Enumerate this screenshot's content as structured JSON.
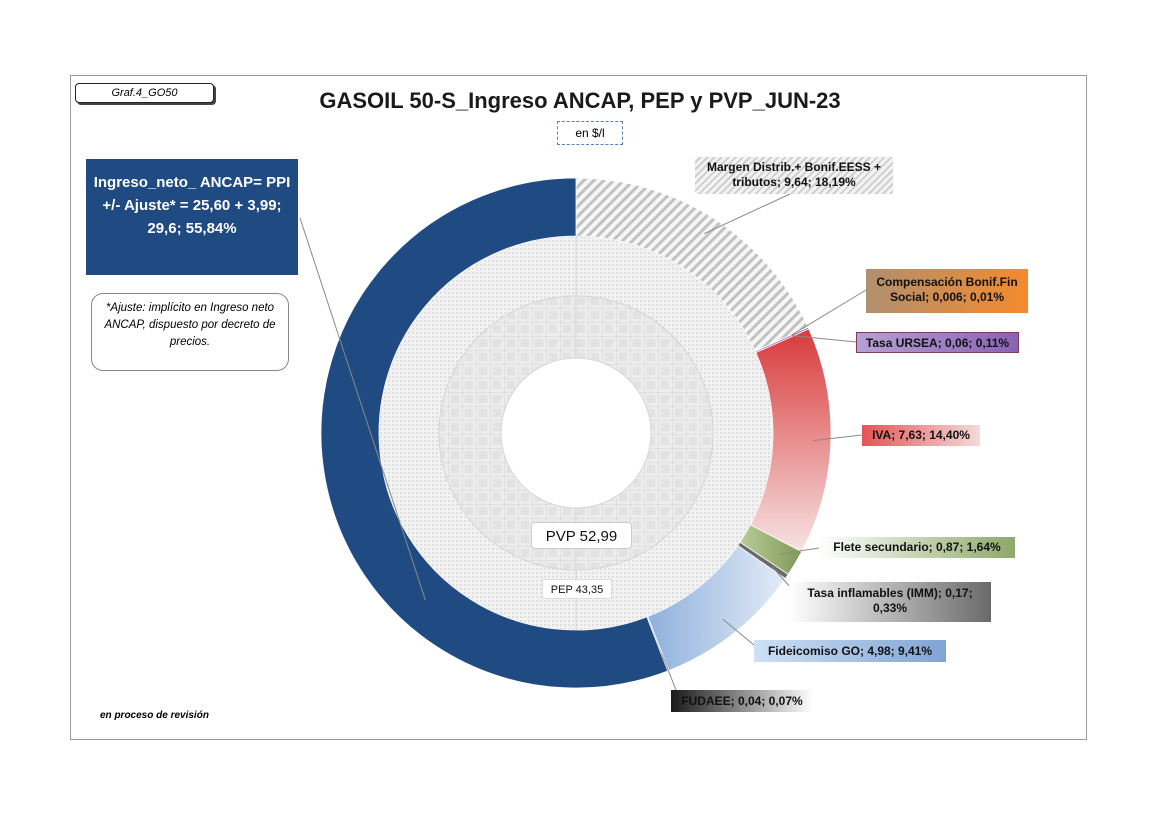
{
  "tag": "Graf.4_GO50",
  "title": "GASOIL 50-S_Ingreso ANCAP, PEP y PVP_JUN-23",
  "unit": "en $/l",
  "note": "en proceso de revisión",
  "ajuste_note": "*Ajuste: implícito en Ingreso neto ANCAP, dispuesto por decreto de precios.",
  "labels": {
    "ancap": "Ingreso_neto_ ANCAP= PPI +/- Ajuste* = 25,60 + 3,99; 29,6; 55,84%",
    "margen": "Margen Distrib.+ Bonif.EESS + tributos; 9,64; 18,19%",
    "comp": "Compensación Bonif.Fin Social; 0,006; 0,01%",
    "ursea": "Tasa URSEA; 0,06; 0,11%",
    "iva": "IVA; 7,63; 14,40%",
    "flete": "Flete secundario; 0,87; 1,64%",
    "tasa": "Tasa inflamables (IMM); 0,17; 0,33%",
    "fide": "Fideicomiso GO; 4,98; 9,41%",
    "fudaee": "FUDAEE; 0,04; 0,07%",
    "pvp": "PVP 52,99",
    "pep": "PEP 43,35"
  },
  "chart_data": {
    "type": "pie",
    "subtype": "doughnut",
    "title": "GASOIL 50-S_Ingreso ANCAP, PEP y PVP_JUN-23",
    "unit": "$/l",
    "outer_ring": {
      "series": [
        {
          "name": "Margen Distrib.+ Bonif.EESS + tributos",
          "value": 9.64,
          "percent": 18.19,
          "color": "#d9d9d9",
          "pattern": "diagonal"
        },
        {
          "name": "Compensación Bonif.Fin Social",
          "value": 0.006,
          "percent": 0.01,
          "color": "#f58a2c"
        },
        {
          "name": "Tasa URSEA",
          "value": 0.06,
          "percent": 0.11,
          "color": "#8a62b3"
        },
        {
          "name": "IVA",
          "value": 7.63,
          "percent": 14.4,
          "color": "#d93a3a"
        },
        {
          "name": "Flete secundario",
          "value": 0.87,
          "percent": 1.64,
          "color": "#8ea86a"
        },
        {
          "name": "Tasa inflamables (IMM)",
          "value": 0.17,
          "percent": 0.33,
          "color": "#6a6a6a"
        },
        {
          "name": "Fideicomiso GO",
          "value": 4.98,
          "percent": 9.41,
          "color": "#9bbbe3"
        },
        {
          "name": "FUDAEE",
          "value": 0.04,
          "percent": 0.07,
          "color": "#222222"
        },
        {
          "name": "Ingreso_neto_ ANCAP",
          "value": 29.6,
          "percent": 55.84,
          "color": "#1f4a82"
        }
      ]
    },
    "inner_rings": [
      {
        "name": "PEP",
        "value": 43.35
      },
      {
        "name": "PVP",
        "value": 52.99
      }
    ]
  }
}
